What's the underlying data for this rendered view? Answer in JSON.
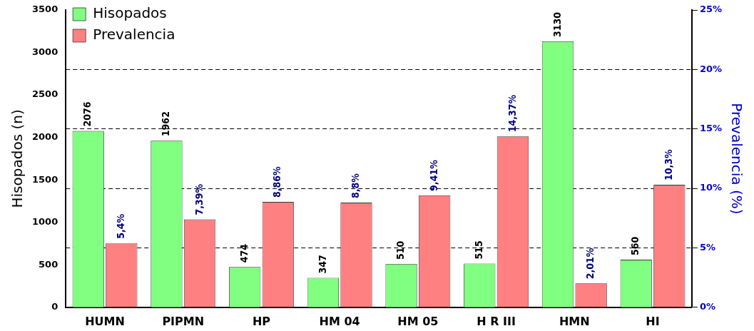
{
  "chart_data": {
    "type": "bar",
    "ylabel": "Hisopados (n)",
    "y2label": "Prevalencia (%)",
    "categories": [
      "HUMN",
      "PIPMN",
      "HP",
      "HM 04",
      "HM 05",
      "H R III",
      "HMN",
      "HI"
    ],
    "series": [
      {
        "name": "Hisopados",
        "color": "#80ff80",
        "values": [
          2076,
          1962,
          474,
          347,
          510,
          515,
          3130,
          560
        ],
        "value_labels": [
          "2076",
          "1962",
          "474",
          "347",
          "510",
          "515",
          "3130",
          "560"
        ]
      },
      {
        "name": "Prevalencia",
        "color": "#ff8080",
        "axis": "y2",
        "values": [
          5.4,
          7.39,
          8.86,
          8.8,
          9.41,
          14.37,
          2.01,
          10.3
        ],
        "value_labels": [
          "5,4%",
          "7,39%",
          "8,86%",
          "8,8%",
          "9,41%",
          "14,37%",
          "2,01%",
          "10,3%"
        ]
      }
    ],
    "ylim": [
      0,
      3500
    ],
    "yticks": [
      0,
      500,
      1000,
      1500,
      2000,
      2500,
      3000,
      3500
    ],
    "y2lim": [
      0,
      25
    ],
    "y2ticks": [
      {
        "value": 0,
        "label": "0%"
      },
      {
        "value": 5,
        "label": "5%"
      },
      {
        "value": 10,
        "label": "10%"
      },
      {
        "value": 15,
        "label": "15%"
      },
      {
        "value": 20,
        "label": "20%"
      },
      {
        "value": 25,
        "label": "25%"
      }
    ],
    "grid": "y2",
    "legend": "top left"
  }
}
